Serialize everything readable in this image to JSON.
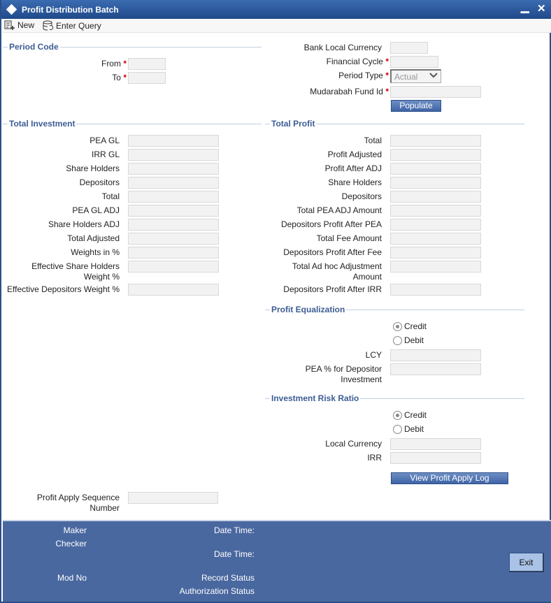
{
  "window": {
    "title": "Profit Distribution Batch",
    "minimize": "▁",
    "close": "✕"
  },
  "toolbar": {
    "new_label": "New",
    "enter_query_label": "Enter Query"
  },
  "period_code": {
    "title": "Period Code",
    "from": "From",
    "to": "To"
  },
  "header_right": {
    "bank_local_currency": "Bank Local Currency",
    "financial_cycle": "Financial Cycle",
    "period_type": "Period Type",
    "period_type_value": "Actual",
    "mudarabah_fund_id": "Mudarabah Fund Id",
    "populate": "Populate"
  },
  "total_investment": {
    "title": "Total Investment",
    "fields": [
      "PEA GL",
      "IRR GL",
      "Share Holders",
      "Depositors",
      "Total",
      "PEA GL ADJ",
      "Share Holders ADJ",
      "Total Adjusted",
      "Weights in %",
      "Effective Share Holders Weight %",
      "Effective Depositors Weight %"
    ]
  },
  "total_profit": {
    "title": "Total Profit",
    "fields": [
      "Total",
      "Profit Adjusted",
      "Profit After ADJ",
      "Share Holders",
      "Depositors",
      "Total PEA ADJ Amount",
      "Depositors Profit After PEA",
      "Total Fee Amount",
      "Depositors Profit After Fee",
      "Total Ad hoc Adjustment Amount",
      "Depositors Profit After IRR"
    ]
  },
  "profit_equalization": {
    "title": "Profit Equalization",
    "credit": "Credit",
    "debit": "Debit",
    "selected": "Credit",
    "lcy": "LCY",
    "pea_pct": "PEA % for Depositor Investment"
  },
  "investment_risk_ratio": {
    "title": "Investment Risk Ratio",
    "credit": "Credit",
    "debit": "Debit",
    "selected": "Credit",
    "local_currency": "Local Currency",
    "irr": "IRR",
    "view_log": "View Profit Apply Log"
  },
  "profit_apply_sequence": "Profit Apply Sequence Number",
  "footer": {
    "maker": "Maker",
    "checker": "Checker",
    "date_time_1": "Date Time:",
    "date_time_2": "Date Time:",
    "mod_no": "Mod No",
    "record_status": "Record Status",
    "authorization_status": "Authorization Status",
    "exit": "Exit"
  },
  "colors": {
    "title_bar": "#20498a",
    "footer": "#4a68a0",
    "section_title": "#3c5d94",
    "required": "#cc0000"
  }
}
